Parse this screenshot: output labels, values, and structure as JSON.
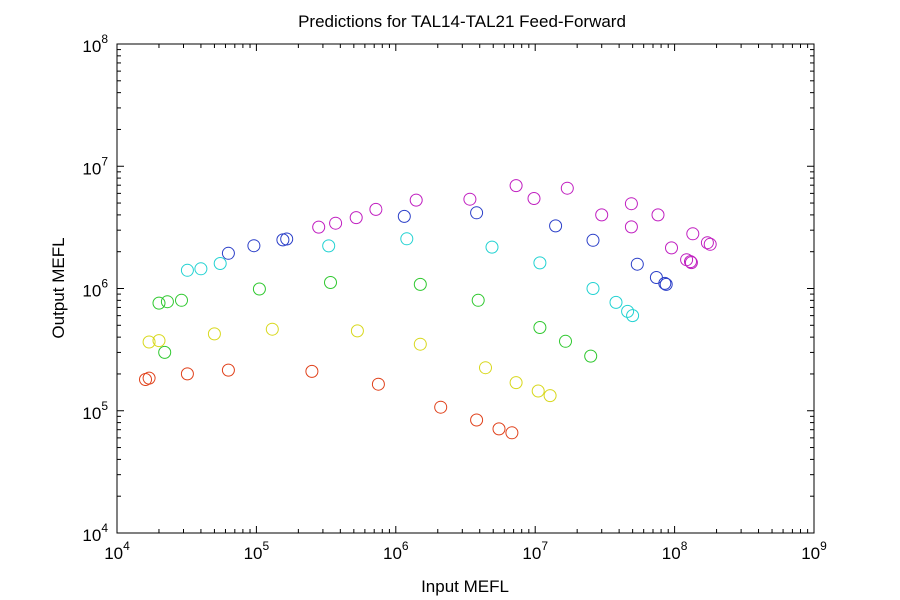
{
  "chart_data": {
    "type": "scatter",
    "title": "Predictions for TAL14-TAL21 Feed-Forward",
    "xlabel": "Input MEFL",
    "ylabel": "Output MEFL",
    "xscale": "log",
    "yscale": "log",
    "xlim": [
      10000,
      1000000000
    ],
    "ylim": [
      10000,
      100000000
    ],
    "grid": false,
    "legend": "none",
    "marker": "open-circle",
    "xticks": [
      {
        "base": "10",
        "exp": "4"
      },
      {
        "base": "10",
        "exp": "5"
      },
      {
        "base": "10",
        "exp": "6"
      },
      {
        "base": "10",
        "exp": "7"
      },
      {
        "base": "10",
        "exp": "8"
      },
      {
        "base": "10",
        "exp": "9"
      }
    ],
    "yticks": [
      {
        "base": "10",
        "exp": "4"
      },
      {
        "base": "10",
        "exp": "5"
      },
      {
        "base": "10",
        "exp": "6"
      },
      {
        "base": "10",
        "exp": "7"
      },
      {
        "base": "10",
        "exp": "8"
      }
    ],
    "series": [
      {
        "color": "#e0401a",
        "points": [
          [
            16000,
            180000
          ],
          [
            17000,
            185000
          ],
          [
            32000,
            200000
          ],
          [
            63000,
            215000
          ],
          [
            250000,
            210000
          ],
          [
            750000,
            165000
          ],
          [
            2100000,
            107000
          ],
          [
            3800000,
            84000
          ],
          [
            5500000,
            71000
          ],
          [
            6800000,
            66000
          ]
        ]
      },
      {
        "color": "#d8d81c",
        "points": [
          [
            17000,
            365000
          ],
          [
            20000,
            375000
          ],
          [
            50000,
            425000
          ],
          [
            130000,
            465000
          ],
          [
            530000,
            450000
          ],
          [
            1500000,
            350000
          ],
          [
            4400000,
            225000
          ],
          [
            7300000,
            170000
          ],
          [
            10500000,
            145000
          ],
          [
            12800000,
            133000
          ]
        ]
      },
      {
        "color": "#2ec82e",
        "points": [
          [
            20000,
            760000
          ],
          [
            23000,
            780000
          ],
          [
            29000,
            800000
          ],
          [
            105000,
            990000
          ],
          [
            340000,
            1120000
          ],
          [
            1500000,
            1080000
          ],
          [
            3900000,
            800000
          ],
          [
            10800000,
            480000
          ],
          [
            16500000,
            370000
          ],
          [
            22000,
            300000
          ],
          [
            25000000,
            280000
          ]
        ]
      },
      {
        "color": "#22d2d2",
        "points": [
          [
            32000,
            1410000
          ],
          [
            40000,
            1450000
          ],
          [
            55000,
            1600000
          ],
          [
            330000,
            2230000
          ],
          [
            1200000,
            2550000
          ],
          [
            4900000,
            2180000
          ],
          [
            10800000,
            1620000
          ],
          [
            26000000,
            1000000
          ],
          [
            38000000,
            770000
          ],
          [
            46000000,
            650000
          ],
          [
            50000000,
            600000
          ]
        ]
      },
      {
        "color": "#2a3ec8",
        "points": [
          [
            63000,
            1940000
          ],
          [
            96000,
            2240000
          ],
          [
            155000,
            2500000
          ],
          [
            165000,
            2540000
          ],
          [
            1150000,
            3890000
          ],
          [
            3800000,
            4160000
          ],
          [
            14000000,
            3250000
          ],
          [
            26000000,
            2480000
          ],
          [
            54000000,
            1580000
          ],
          [
            74000000,
            1230000
          ],
          [
            85000000,
            1100000
          ],
          [
            87000000,
            1080000
          ]
        ]
      },
      {
        "color": "#c01ec0",
        "points": [
          [
            280000,
            3180000
          ],
          [
            370000,
            3420000
          ],
          [
            520000,
            3800000
          ],
          [
            720000,
            4440000
          ],
          [
            1400000,
            5290000
          ],
          [
            3400000,
            5380000
          ],
          [
            7300000,
            6950000
          ],
          [
            9800000,
            5450000
          ],
          [
            17000000,
            6620000
          ],
          [
            30000000,
            4000000
          ],
          [
            49000000,
            4940000
          ],
          [
            49000000,
            3190000
          ],
          [
            76000000,
            4000000
          ],
          [
            95000000,
            2150000
          ],
          [
            122000000,
            1720000
          ],
          [
            130000000,
            1660000
          ],
          [
            132000000,
            1630000
          ],
          [
            135000000,
            2800000
          ],
          [
            172000000,
            2370000
          ],
          [
            180000000,
            2300000
          ]
        ]
      }
    ]
  }
}
